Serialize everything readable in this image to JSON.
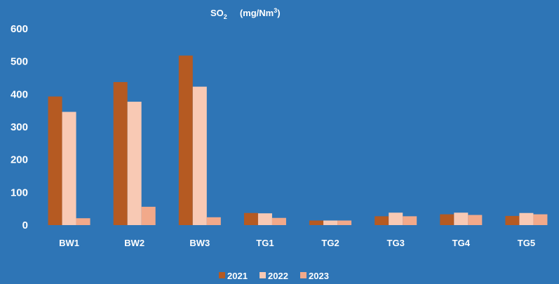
{
  "chart_data": {
    "type": "bar",
    "title": {
      "prefix": "SO",
      "subscript": "2",
      "unit_open": "(mg/Nm",
      "superscript": "3",
      "unit_close": ")"
    },
    "xlabel": "",
    "ylabel": "",
    "ylim": [
      0,
      600
    ],
    "yticks": [
      "0",
      "100",
      "200",
      "300",
      "400",
      "500",
      "600"
    ],
    "categories": [
      "BW1",
      "BW2",
      "BW3",
      "TG1",
      "TG2",
      "TG3",
      "TG4",
      "TG5"
    ],
    "series": [
      {
        "name": "2021",
        "color": "#b55a22",
        "values": [
          393,
          437,
          518,
          37,
          14,
          27,
          33,
          28
        ]
      },
      {
        "name": "2022",
        "color": "#f8c9b4",
        "values": [
          346,
          377,
          423,
          36,
          14,
          38,
          38,
          37
        ]
      },
      {
        "name": "2023",
        "color": "#f2a98a",
        "values": [
          21,
          56,
          24,
          22,
          14,
          27,
          31,
          33
        ]
      }
    ],
    "grid": false,
    "legend_position": "bottom"
  }
}
